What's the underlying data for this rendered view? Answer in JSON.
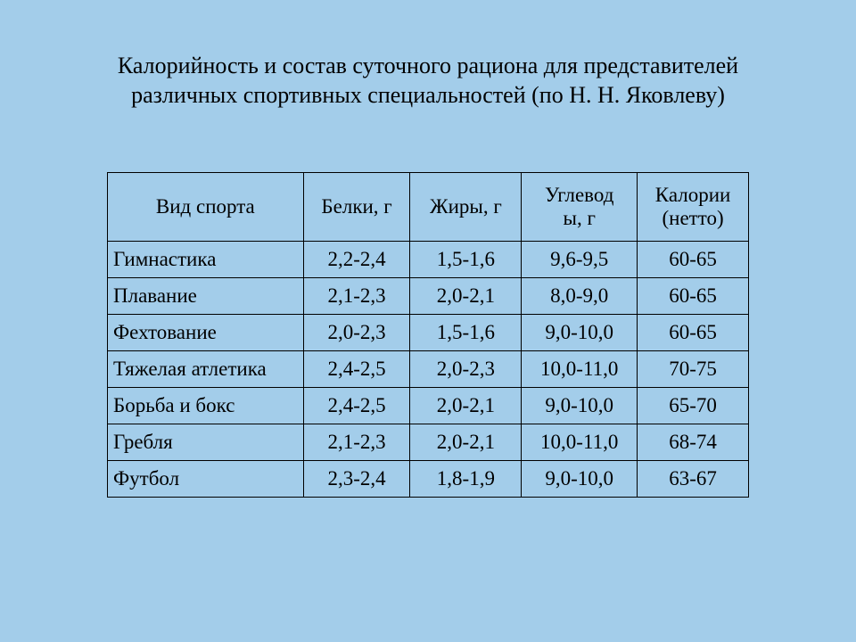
{
  "title_line1": "Калорийность и состав суточного рациона для представителей",
  "title_line2": "различных спортивных специальностей (по Н. Н. Яковлеву)",
  "table": {
    "columns": [
      "Вид спорта",
      "Белки, г",
      "Жиры, г",
      "Углевод\nы, г",
      "Калории\n(нетто)"
    ],
    "rows": [
      [
        "Гимнастика",
        "2,2-2,4",
        "1,5-1,6",
        "9,6-9,5",
        "60-65"
      ],
      [
        "Плавание",
        "2,1-2,3",
        "2,0-2,1",
        "8,0-9,0",
        "60-65"
      ],
      [
        "Фехтование",
        "2,0-2,3",
        "1,5-1,6",
        "9,0-10,0",
        "60-65"
      ],
      [
        "Тяжелая атлетика",
        "2,4-2,5",
        "2,0-2,3",
        "10,0-11,0",
        "70-75"
      ],
      [
        "Борьба и бокс",
        "2,4-2,5",
        "2,0-2,1",
        "9,0-10,0",
        "65-70"
      ],
      [
        "Гребля",
        "2,1-2,3",
        "2,0-2,1",
        "10,0-11,0",
        "68-74"
      ],
      [
        "Футбол",
        "2,3-2,4",
        "1,8-1,9",
        "9,0-10,0",
        "63-67"
      ]
    ]
  },
  "style": {
    "background_color": "#a3cdea",
    "border_color": "#000000",
    "text_color": "#000000",
    "title_fontsize": 26,
    "cell_fontsize": 23,
    "font_family": "Times New Roman"
  }
}
